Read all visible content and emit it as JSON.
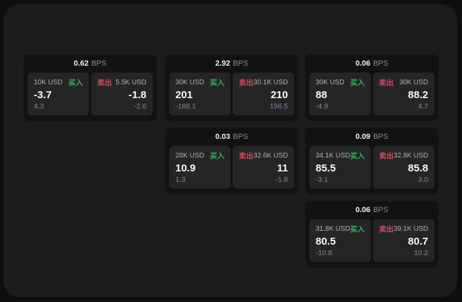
{
  "labels": {
    "bps": "BPS",
    "buy": "买入",
    "sell": "卖出"
  },
  "colors": {
    "page_bg": "#0e0e0f",
    "panel_bg": "#1c1c1e",
    "card_bg": "#121214",
    "tile_bg": "#252528",
    "buy_accent": "#3cae66",
    "sell_accent": "#c94f5e"
  },
  "cards": [
    {
      "bps": "0.62",
      "buy": {
        "size": "10K USD",
        "price": "-3.7",
        "change": "4.3"
      },
      "sell": {
        "size": "5.5K USD",
        "price": "-1.8",
        "change": "-2.6"
      }
    },
    {
      "bps": "2.92",
      "buy": {
        "size": "30K USD",
        "price": "201",
        "change": "-188.1"
      },
      "sell": {
        "size": "30.1K USD",
        "price": "210",
        "change": "196.5"
      }
    },
    {
      "bps": "0.06",
      "buy": {
        "size": "30K USD",
        "price": "88",
        "change": "-4.9"
      },
      "sell": {
        "size": "30K USD",
        "price": "88.2",
        "change": "4.7"
      }
    },
    {
      "bps": "0.03",
      "buy": {
        "size": "28K USD",
        "price": "10.9",
        "change": "1.3"
      },
      "sell": {
        "size": "32.6K USD",
        "price": "11",
        "change": "-1.8"
      }
    },
    {
      "bps": "0.09",
      "buy": {
        "size": "34.1K USD",
        "price": "85.5",
        "change": "-3.1"
      },
      "sell": {
        "size": "32.8K USD",
        "price": "85.8",
        "change": "3.0"
      }
    },
    {
      "bps": "0.06",
      "buy": {
        "size": "31.8K USD",
        "price": "80.5",
        "change": "-10.8"
      },
      "sell": {
        "size": "39.1K USD",
        "price": "80.7",
        "change": "10.2"
      }
    }
  ]
}
